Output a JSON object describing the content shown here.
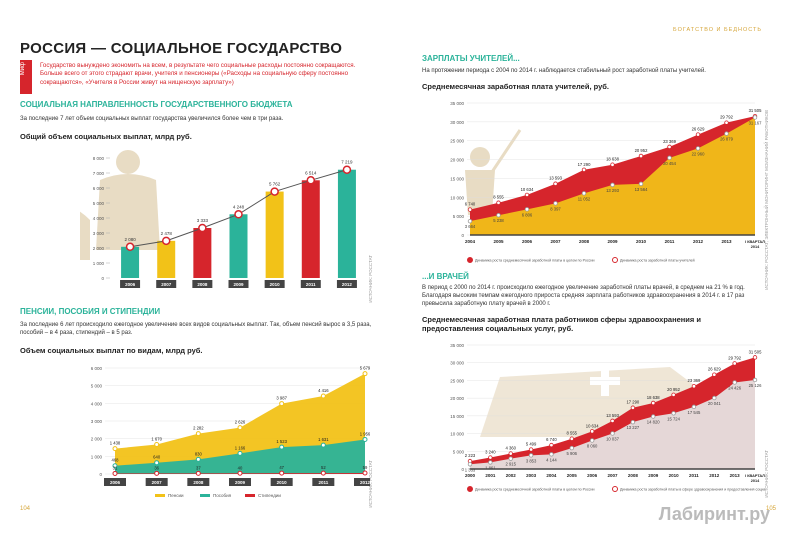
{
  "header": {
    "rubric": "БОГАТСТВО И БЕДНОСТЬ"
  },
  "left": {
    "title": "РОССИЯ — СОЦИАЛЬНОЕ ГОСУДАРСТВО",
    "myth_label": "Миф",
    "intro": "Государство вынуждено экономить на всем, в результате чего социальные расходы постоянно сокращаются. Больше всего от этого страдают врачи, учителя и пенсионеры («Расходы на социальную сферу постоянно сокращаются», «Учителя в России живут на нищенскую зарплату»)",
    "section1_title": "СОЦИАЛЬНАЯ НАПРАВЛЕННОСТЬ ГОСУДАРСТВЕННОГО БЮДЖЕТА",
    "section1_text": "За последние 7 лет объем социальных выплат государства увеличился более чем в три раза.",
    "chart1_title": "Общий объем социальных выплат, млрд руб.",
    "section2_title": "ПЕНСИИ, ПОСОБИЯ И СТИПЕНДИИ",
    "section2_text": "За последние 6 лет происходило ежегодное увеличение всех видов социальных выплат. Так, объем пенсий вырос в 3,5 раза, пособий – в 4 раза, стипендий – в 5 раз.",
    "chart2_title": "Объем социальных выплат по видам, млрд руб.",
    "source": "ИСТОЧНИК: РОССТАТ",
    "page_number": "104"
  },
  "right": {
    "section1_title": "ЗАРПЛАТЫ УЧИТЕЛЕЙ...",
    "section1_text": "На протяжении периода с 2004 по 2014 г. наблюдается стабильный рост заработной платы учителей.",
    "chart3_title": "Среднемесячная заработная плата учителей, руб.",
    "section2_title": "...И ВРАЧЕЙ",
    "section2_text": "В период с 2000 по 2014 г. происходило ежегодное увеличение заработной платы врачей, в среднем на 21 % в год. Благодаря высоким темпам ежегодного прироста средняя зарплата работников здравоохранения в 2014 г. в 17 раз превысила заработную плату врачей в 2000 г.",
    "chart4_title": "Среднемесячная заработная плата работников сферы здравоохранения и предоставления социальных услуг, руб.",
    "source3": "ИСТОЧНИК: РОССТАТ; ЭЛЕКТРОННЫЙ МОНИТОРИНГ МОИЗНАНИЙ РАБОТНИКОВ",
    "source4": "ИСТОЧНИК: РОССТАТ",
    "page_number": "105",
    "watermark": "Лабиринт.ру"
  },
  "colors": {
    "red": "#d6252c",
    "teal": "#2bb39a",
    "yellow": "#f2c218",
    "beige": "#e8dcc4",
    "grey": "#d9d9d9"
  },
  "chart_data": [
    {
      "type": "bar",
      "title": "Общий объем социальных выплат, млрд руб.",
      "categories": [
        "2006",
        "2007",
        "2008",
        "2009",
        "2010",
        "2011",
        "2012"
      ],
      "values": [
        2080,
        2478,
        3333,
        4248,
        5762,
        6514,
        7219
      ],
      "value_labels": [
        "2 080",
        "2 478",
        "3 333",
        "4 248",
        "5 762",
        "6 514",
        "7 219"
      ],
      "yticks": [
        "0",
        "1 000",
        "2 000",
        "3 000",
        "4 000",
        "5 000",
        "6 000",
        "7 000",
        "8 000"
      ],
      "ylim": [
        0,
        8000
      ],
      "bar_colors": [
        "#2bb39a",
        "#f2c218",
        "#d6252c",
        "#2bb39a",
        "#f2c218",
        "#d6252c",
        "#2bb39a"
      ]
    },
    {
      "type": "area",
      "title": "Объем социальных выплат по видам, млрд руб.",
      "categories": [
        "2006",
        "2007",
        "2008",
        "2009",
        "2010",
        "2011",
        "2012"
      ],
      "yticks": [
        "0",
        "1 000",
        "2 000",
        "3 000",
        "4 000",
        "5 000",
        "6 000"
      ],
      "ylim": [
        0,
        6000
      ],
      "series": [
        {
          "name": "Пенсии",
          "values": [
            1438,
            1670,
            2282,
            2626,
            3987,
            4416,
            5679
          ],
          "labels": [
            "1 438",
            "1 670",
            "2 282",
            "2 626",
            "3 987",
            "4 416",
            "5 679"
          ],
          "color": "#f2c218"
        },
        {
          "name": "Пособия",
          "values": [
            468,
            640,
            830,
            1166,
            1523,
            1631,
            1956
          ],
          "labels": [
            "468",
            "640",
            "830",
            "1 166",
            "1 523",
            "1 631",
            "1 956"
          ],
          "color": "#2bb39a"
        },
        {
          "name": "Стипендии",
          "values": [
            31,
            36,
            37,
            40,
            47,
            52,
            59
          ],
          "labels": [
            "31",
            "36",
            "37",
            "40",
            "47",
            "52",
            "59"
          ],
          "color": "#d6252c"
        }
      ]
    },
    {
      "type": "area",
      "title": "Среднемесячная заработная плата учителей, руб.",
      "categories": [
        "2004",
        "2005",
        "2006",
        "2007",
        "2008",
        "2009",
        "2010",
        "2011",
        "2012",
        "2013",
        "I КВАРТАЛ 2014"
      ],
      "yticks": [
        "0",
        "5 000",
        "10 000",
        "15 000",
        "20 000",
        "25 000",
        "30 000",
        "35 000"
      ],
      "ylim": [
        0,
        35000
      ],
      "series": [
        {
          "name": "Динамика роста среднемесячной заработной платы в целом по России",
          "values": [
            6740,
            8555,
            10634,
            13593,
            17290,
            18638,
            20952,
            23369,
            26629,
            29792,
            31505
          ],
          "labels": [
            "6 740",
            "8 555",
            "10 634",
            "13 593",
            "17 290",
            "18 638",
            "20 952",
            "23 369",
            "26 629",
            "29 792",
            "31 505"
          ],
          "color": "#d6252c"
        },
        {
          "name": "Динамика роста заработной платы учителей",
          "values": [
            3664,
            5238,
            6806,
            8397,
            11052,
            13293,
            13564,
            20454,
            22960,
            26879,
            31167
          ],
          "labels": [
            "3 664",
            "5 238",
            "6 806",
            "8 397",
            "11 052",
            "13 293",
            "13 564",
            "20 454",
            "22 960",
            "26 879",
            "31 167"
          ],
          "color": "#f2c218"
        }
      ]
    },
    {
      "type": "area",
      "title": "Среднемесячная заработная плата работников сферы здравоохранения и предоставления социальных услуг, руб.",
      "categories": [
        "2000",
        "2001",
        "2002",
        "2003",
        "2004",
        "2005",
        "2006",
        "2007",
        "2008",
        "2009",
        "2010",
        "2011",
        "2012",
        "2013",
        "I КВАРТАЛ 2014"
      ],
      "yticks": [
        "0",
        "5 000",
        "10 000",
        "15 000",
        "20 000",
        "25 000",
        "30 000",
        "35 000"
      ],
      "ylim": [
        0,
        35000
      ],
      "series": [
        {
          "name": "Динамика роста среднемесячной заработной платы в целом по России",
          "values": [
            2223,
            3240,
            4360,
            5499,
            6740,
            8555,
            10634,
            13593,
            17290,
            18638,
            20952,
            23369,
            26629,
            29792,
            31505
          ],
          "labels": [
            "2 223",
            "3 240",
            "4 360",
            "5 499",
            "6 740",
            "8 555",
            "10 634",
            "13 593",
            "17 290",
            "18 638",
            "20 952",
            "23 369",
            "26 629",
            "29 792",
            "31 505"
          ],
          "color": "#d6252c"
        },
        {
          "name": "Динамика роста заработной платы в сфере здравоохранения и предоставления социальных услуг",
          "values": [
            1333,
            1861,
            2915,
            3853,
            4144,
            5906,
            8060,
            10037,
            13227,
            14820,
            15724,
            17545,
            20041,
            24426,
            25126
          ],
          "labels": [
            "1 333",
            "1 861",
            "2 915",
            "3 853",
            "4 144",
            "5 906",
            "8 060",
            "10 037",
            "13 227",
            "14 820",
            "15 724",
            "17 545",
            "20 041",
            "24 426",
            "25 126"
          ],
          "color": "#e6e6e6"
        }
      ]
    }
  ]
}
